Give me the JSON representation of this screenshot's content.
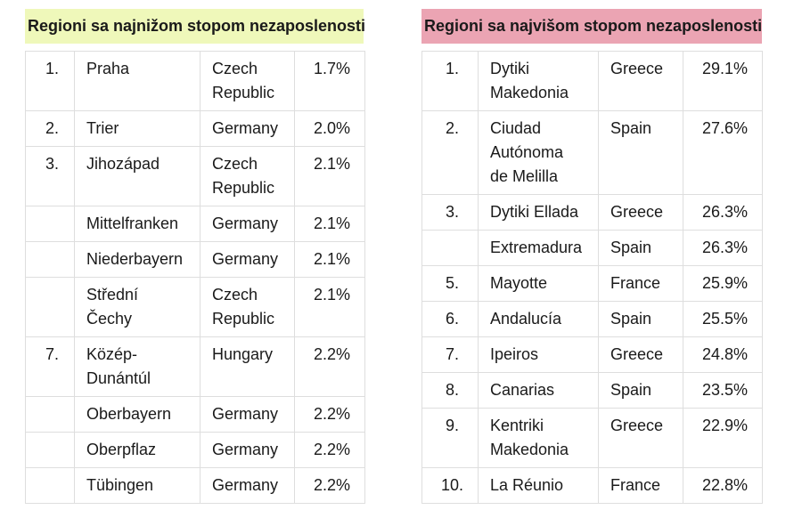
{
  "tables": [
    {
      "title": "Regioni sa najnižom stopom nezaposlenosti",
      "header_bg": "#eff8ba",
      "columns": [
        "rank",
        "region",
        "country",
        "rate"
      ],
      "rows": [
        {
          "rank": "1.",
          "region": "Praha",
          "country": "Czech\nRepublic",
          "rate": "1.7%"
        },
        {
          "rank": "2.",
          "region": "Trier",
          "country": "Germany",
          "rate": "2.0%"
        },
        {
          "rank": "3.",
          "region": "Jihozápad",
          "country": "Czech\nRepublic",
          "rate": "2.1%"
        },
        {
          "rank": "",
          "region": "Mittelfranken",
          "country": "Germany",
          "rate": "2.1%"
        },
        {
          "rank": "",
          "region": "Niederbayern",
          "country": "Germany",
          "rate": "2.1%"
        },
        {
          "rank": "",
          "region": "Střední\nČechy",
          "country": "Czech\nRepublic",
          "rate": "2.1%"
        },
        {
          "rank": "7.",
          "region": "Közép-\nDunántúl",
          "country": "Hungary",
          "rate": "2.2%"
        },
        {
          "rank": "",
          "region": "Oberbayern",
          "country": "Germany",
          "rate": "2.2%"
        },
        {
          "rank": "",
          "region": "Oberpflaz",
          "country": "Germany",
          "rate": "2.2%"
        },
        {
          "rank": "",
          "region": "Tübingen",
          "country": "Germany",
          "rate": "2.2%"
        }
      ]
    },
    {
      "title": "Regioni sa najvišom stopom nezaposlenosti",
      "header_bg": "#eba4b3",
      "columns": [
        "rank",
        "region",
        "country",
        "rate"
      ],
      "rows": [
        {
          "rank": "1.",
          "region": "Dytiki\nMakedonia",
          "country": "Greece",
          "rate": "29.1%"
        },
        {
          "rank": "2.",
          "region": "Ciudad\nAutónoma\nde Melilla",
          "country": "Spain",
          "rate": "27.6%"
        },
        {
          "rank": "3.",
          "region": "Dytiki Ellada",
          "country": "Greece",
          "rate": "26.3%"
        },
        {
          "rank": "",
          "region": "Extremadura",
          "country": "Spain",
          "rate": "26.3%"
        },
        {
          "rank": "5.",
          "region": "Mayotte",
          "country": "France",
          "rate": "25.9%"
        },
        {
          "rank": "6.",
          "region": "Andalucía",
          "country": "Spain",
          "rate": "25.5%"
        },
        {
          "rank": "7.",
          "region": "Ipeiros",
          "country": "Greece",
          "rate": "24.8%"
        },
        {
          "rank": "8.",
          "region": "Canarias",
          "country": "Spain",
          "rate": "23.5%"
        },
        {
          "rank": "9.",
          "region": "Kentriki\nMakedonia",
          "country": "Greece",
          "rate": "22.9%"
        },
        {
          "rank": "10.",
          "region": "La Réunio",
          "country": "France",
          "rate": "22.8%"
        }
      ]
    }
  ]
}
